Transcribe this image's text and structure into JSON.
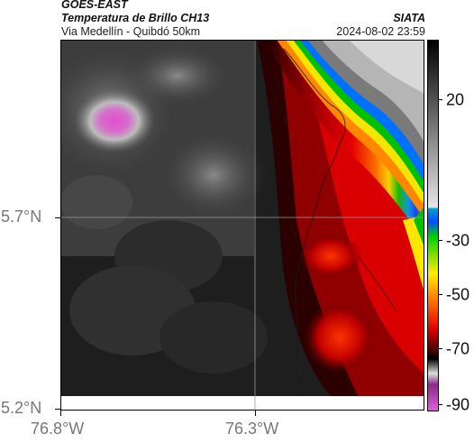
{
  "header": {
    "satellite": "GOES-EAST",
    "product": "Temperatura de Brillo CH13",
    "org": "SIATA",
    "region": "Via Medellín - Quibdó 50km",
    "datetime": "2024-08-02 23:59"
  },
  "axes": {
    "lat_labels": [
      "5.7°N",
      "5.2°N"
    ],
    "lon_labels": [
      "76.8°W",
      "76.3°W"
    ]
  },
  "colorbar": {
    "labels": [
      "20",
      "-30",
      "-50",
      "-70",
      "-90"
    ]
  },
  "colors": {
    "cloud_free_land": "#1a1a1a",
    "cold_cloud_red": "#d40000",
    "cyan_edge": "#00bcd4",
    "warm_gray": "#c8c8c8",
    "magenta_hotspot": "#e05ad0"
  }
}
